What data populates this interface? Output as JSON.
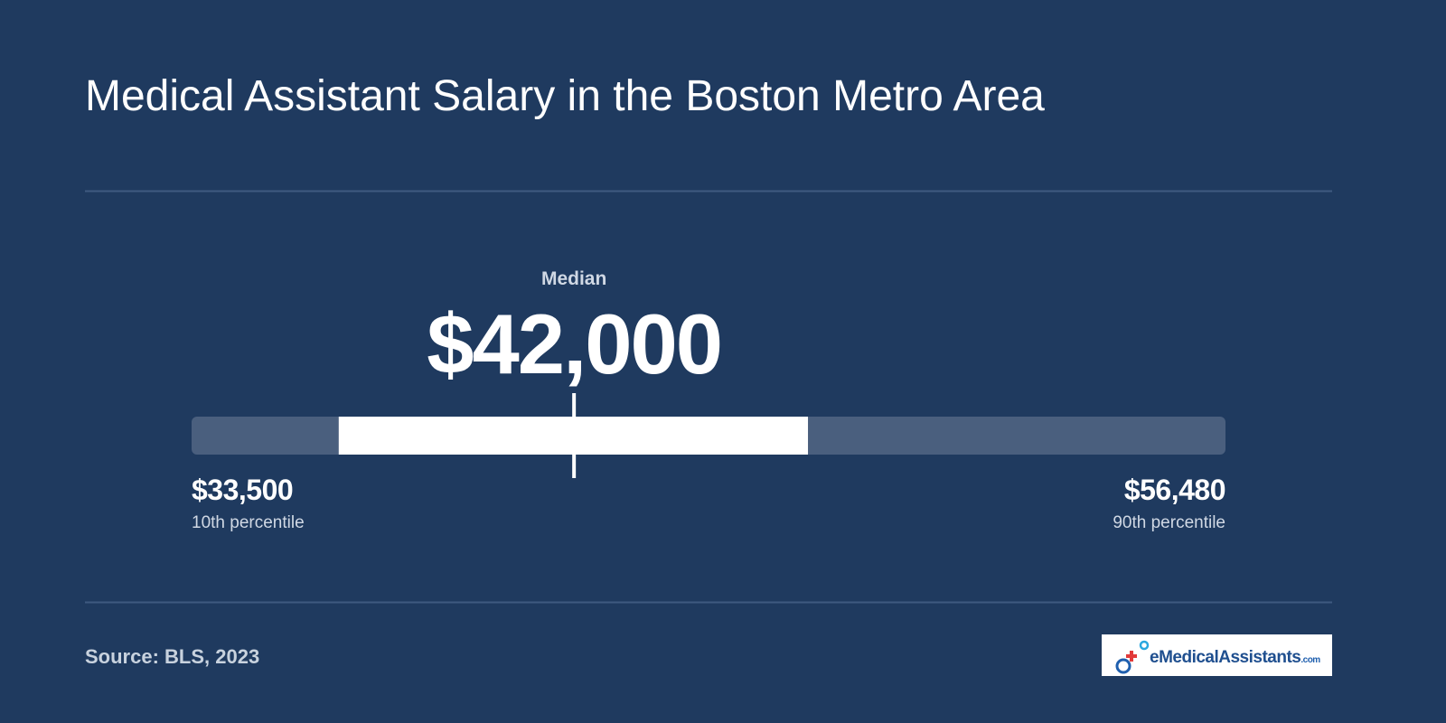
{
  "chart_data": {
    "type": "range",
    "title": "Medical Assistant Salary in the Boston Metro Area",
    "median": {
      "label": "Median",
      "value": 42000,
      "value_label": "$42,000"
    },
    "low": {
      "value": 33500,
      "value_label": "$33,500",
      "label": "10th percentile"
    },
    "high": {
      "value": 56480,
      "value_label": "$56,480",
      "label": "90th percentile"
    },
    "mid_range": [
      36770,
      47200
    ],
    "track_color": "#4a5f7e",
    "range_color": "#ffffff",
    "source": "Source: BLS, 2023",
    "logo": {
      "name": "eMedicalAssistants",
      "suffix": ".com"
    }
  }
}
